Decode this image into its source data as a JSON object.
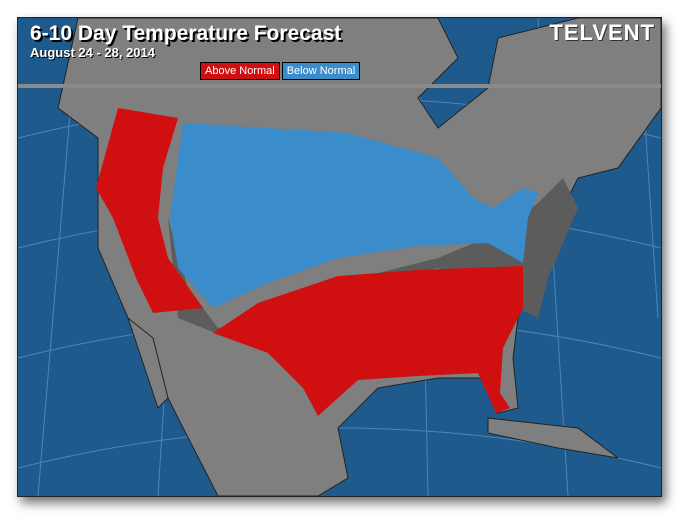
{
  "header": {
    "title": "6-10 Day Temperature Forecast",
    "date_range": "August 24 - 28, 2014",
    "logo": "TELVENT"
  },
  "legend": [
    {
      "label": "Above Normal",
      "color": "#d01010"
    },
    {
      "label": "Below Normal",
      "color": "#3a8ccb"
    }
  ],
  "colors": {
    "ocean": "#1f5a8c",
    "land": "#7f7f7f",
    "near_normal": "#5c5c5c"
  }
}
